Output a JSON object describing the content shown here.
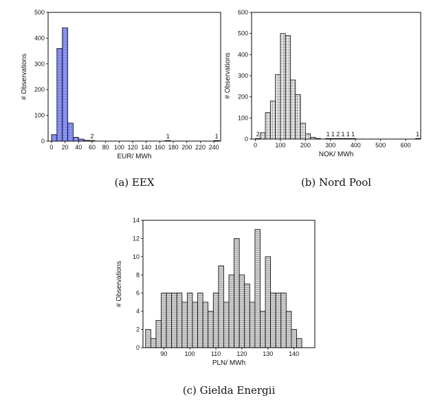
{
  "chart_data": [
    {
      "type": "bar",
      "caption": "(a) EEX",
      "xlabel": "EUR/ MWh",
      "ylabel": "# Observations",
      "bar_color": "#7b86f2",
      "hatch": "blue-grid",
      "xlim": [
        -5,
        250
      ],
      "ylim": [
        0,
        500
      ],
      "xticks": [
        0,
        20,
        40,
        60,
        80,
        100,
        120,
        140,
        160,
        180,
        200,
        220,
        240
      ],
      "yticks": [
        0,
        100,
        200,
        300,
        400,
        500
      ],
      "bin_width": 8,
      "bins": [
        {
          "x": 0,
          "value": 25
        },
        {
          "x": 8,
          "value": 360
        },
        {
          "x": 16,
          "value": 440
        },
        {
          "x": 24,
          "value": 70
        },
        {
          "x": 32,
          "value": 15
        },
        {
          "x": 40,
          "value": 8
        },
        {
          "x": 48,
          "value": 3
        },
        {
          "x": 56,
          "value": 2
        },
        {
          "x": 168,
          "value": 1
        },
        {
          "x": 240,
          "value": 1
        }
      ],
      "annotations": [
        {
          "x": 60,
          "text": "2"
        },
        {
          "x": 172,
          "text": "1"
        },
        {
          "x": 244,
          "text": "1"
        }
      ]
    },
    {
      "type": "bar",
      "caption": "(b) Nord Pool",
      "xlabel": "NOK/ MWh",
      "ylabel": "# Observations",
      "bar_color": "#d8d8d8",
      "hatch": "gray-grid",
      "xlim": [
        -15,
        660
      ],
      "ylim": [
        0,
        600
      ],
      "xticks": [
        0,
        100,
        200,
        300,
        400,
        500,
        600
      ],
      "yticks": [
        0,
        100,
        200,
        300,
        400,
        500,
        600
      ],
      "bin_width": 20,
      "bins": [
        {
          "x": 0,
          "value": 2
        },
        {
          "x": 20,
          "value": 30
        },
        {
          "x": 40,
          "value": 125
        },
        {
          "x": 60,
          "value": 180
        },
        {
          "x": 80,
          "value": 305
        },
        {
          "x": 100,
          "value": 500
        },
        {
          "x": 120,
          "value": 490
        },
        {
          "x": 140,
          "value": 280
        },
        {
          "x": 160,
          "value": 210
        },
        {
          "x": 180,
          "value": 75
        },
        {
          "x": 200,
          "value": 25
        },
        {
          "x": 220,
          "value": 8
        },
        {
          "x": 240,
          "value": 3
        },
        {
          "x": 280,
          "value": 1
        },
        {
          "x": 300,
          "value": 1
        },
        {
          "x": 320,
          "value": 2
        },
        {
          "x": 340,
          "value": 1
        },
        {
          "x": 360,
          "value": 1
        },
        {
          "x": 380,
          "value": 1
        },
        {
          "x": 640,
          "value": 1
        }
      ],
      "annotations": [
        {
          "x": 10,
          "text": "2"
        },
        {
          "x": 290,
          "text": "1"
        },
        {
          "x": 310,
          "text": "1"
        },
        {
          "x": 330,
          "text": "2"
        },
        {
          "x": 350,
          "text": "1"
        },
        {
          "x": 370,
          "text": "1"
        },
        {
          "x": 390,
          "text": "1"
        },
        {
          "x": 648,
          "text": "1"
        }
      ]
    },
    {
      "type": "bar",
      "caption": "(c) Gielda Energii",
      "xlabel": "PLN/ MWh",
      "ylabel": "# Observations",
      "bar_color": "#c4c4c4",
      "hatch": "gray-stripes",
      "xlim": [
        82,
        148
      ],
      "ylim": [
        0,
        14
      ],
      "xticks": [
        90,
        100,
        110,
        120,
        130,
        140
      ],
      "yticks": [
        0,
        2,
        4,
        6,
        8,
        10,
        12,
        14
      ],
      "bin_width": 2,
      "bins": [
        {
          "x": 83,
          "value": 2
        },
        {
          "x": 85,
          "value": 1
        },
        {
          "x": 87,
          "value": 3
        },
        {
          "x": 89,
          "value": 6
        },
        {
          "x": 91,
          "value": 6
        },
        {
          "x": 93,
          "value": 6
        },
        {
          "x": 95,
          "value": 6
        },
        {
          "x": 97,
          "value": 5
        },
        {
          "x": 99,
          "value": 6
        },
        {
          "x": 101,
          "value": 5
        },
        {
          "x": 103,
          "value": 6
        },
        {
          "x": 105,
          "value": 5
        },
        {
          "x": 107,
          "value": 4
        },
        {
          "x": 109,
          "value": 6
        },
        {
          "x": 111,
          "value": 9
        },
        {
          "x": 113,
          "value": 5
        },
        {
          "x": 115,
          "value": 8
        },
        {
          "x": 117,
          "value": 12
        },
        {
          "x": 119,
          "value": 8
        },
        {
          "x": 121,
          "value": 7
        },
        {
          "x": 123,
          "value": 5
        },
        {
          "x": 125,
          "value": 13
        },
        {
          "x": 127,
          "value": 4
        },
        {
          "x": 129,
          "value": 10
        },
        {
          "x": 131,
          "value": 6
        },
        {
          "x": 133,
          "value": 6
        },
        {
          "x": 135,
          "value": 6
        },
        {
          "x": 137,
          "value": 4
        },
        {
          "x": 139,
          "value": 2
        },
        {
          "x": 141,
          "value": 1
        }
      ],
      "annotations": []
    }
  ]
}
